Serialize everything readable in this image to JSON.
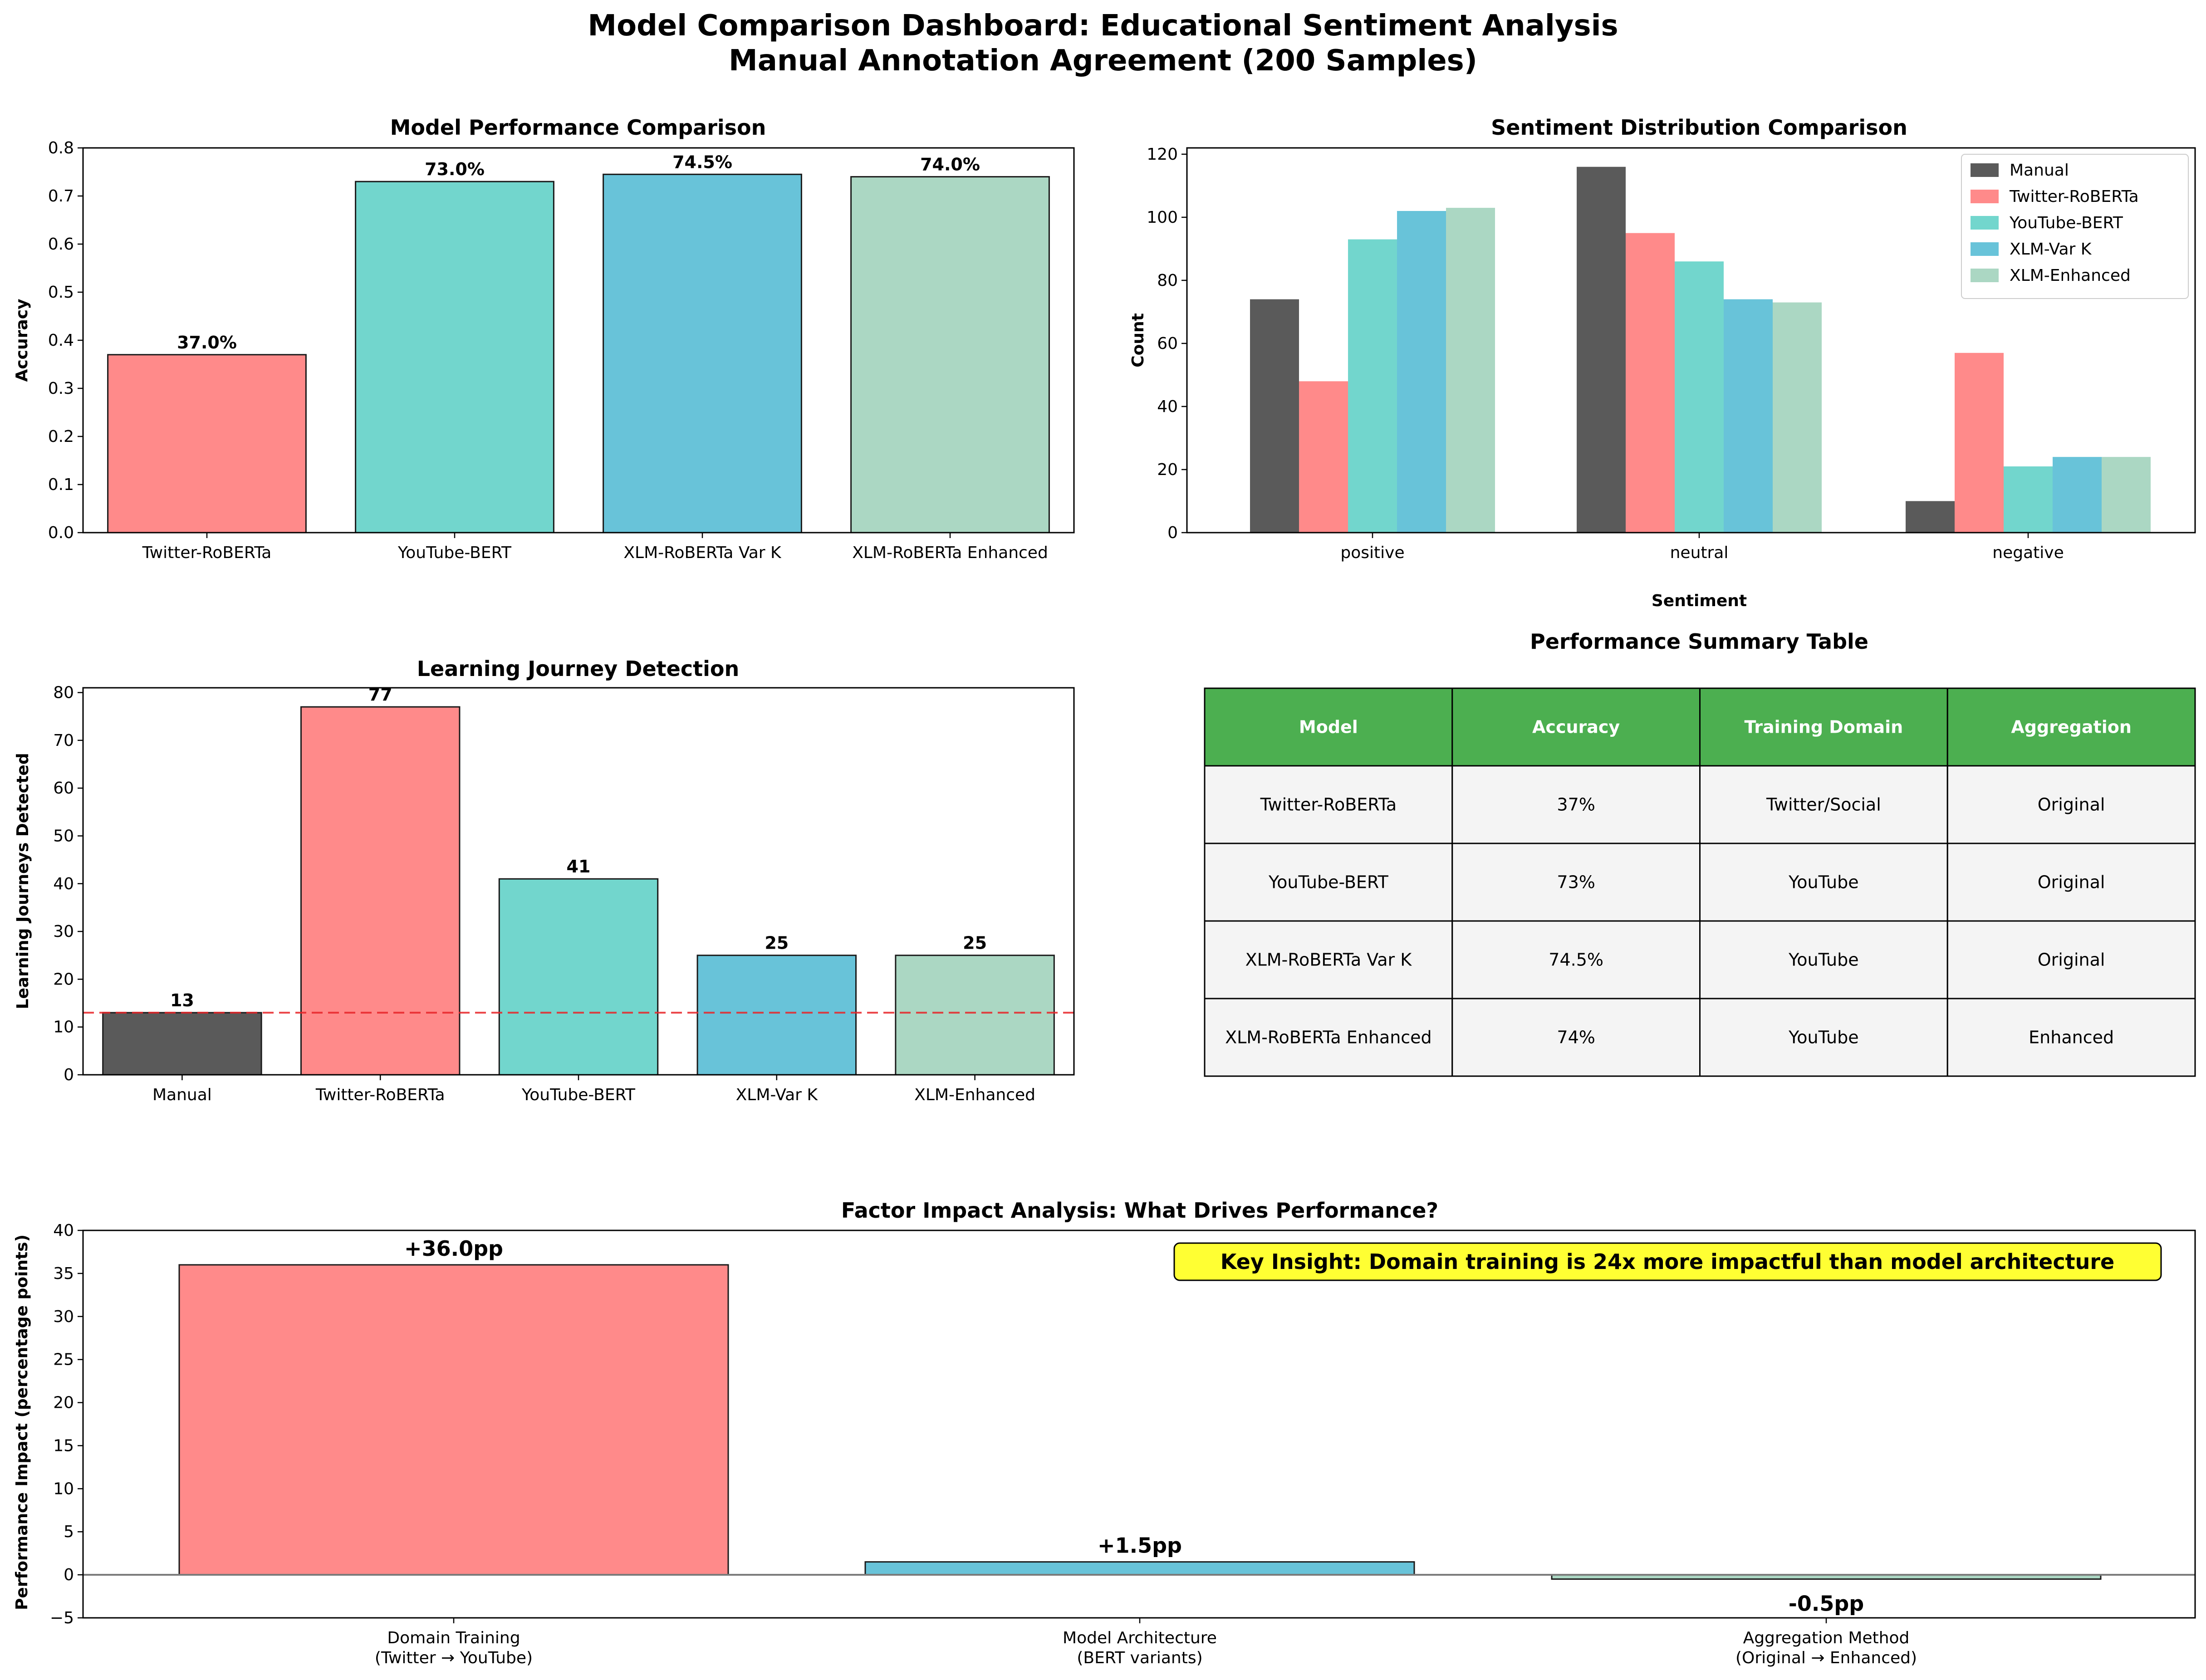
{
  "title_line1": "Model Comparison Dashboard: Educational Sentiment Analysis",
  "title_line2": "Manual Annotation Agreement (200 Samples)",
  "colors": {
    "manual": "#5a5a5a",
    "twitter": "#ff8a8a",
    "youtube": "#72d6cd",
    "xlmvar": "#68c3d9",
    "xlmenh": "#abd7c3",
    "header": "#4caf50",
    "cellbg": "#f4f4f4",
    "insight": "#ffff33",
    "refline": "#e8262a"
  },
  "chart_data": [
    {
      "id": "accuracy",
      "type": "bar",
      "title": "Model Performance Comparison",
      "ylabel": "Accuracy",
      "categories": [
        "Twitter-RoBERTa",
        "YouTube-BERT",
        "XLM-RoBERTa Var K",
        "XLM-RoBERTa Enhanced"
      ],
      "values": [
        0.37,
        0.73,
        0.745,
        0.74
      ],
      "labels": [
        "37.0%",
        "73.0%",
        "74.5%",
        "74.0%"
      ],
      "ylim": [
        0,
        0.8
      ],
      "yticks": [
        "0.0",
        "0.1",
        "0.2",
        "0.3",
        "0.4",
        "0.5",
        "0.6",
        "0.7",
        "0.8"
      ]
    },
    {
      "id": "sentiment",
      "type": "bar",
      "title": "Sentiment Distribution Comparison",
      "xlabel": "Sentiment",
      "ylabel": "Count",
      "categories": [
        "positive",
        "neutral",
        "negative"
      ],
      "series": [
        {
          "name": "Manual",
          "values": [
            74,
            116,
            10
          ]
        },
        {
          "name": "Twitter-RoBERTa",
          "values": [
            48,
            95,
            57
          ]
        },
        {
          "name": "YouTube-BERT",
          "values": [
            93,
            86,
            21
          ]
        },
        {
          "name": "XLM-Var K",
          "values": [
            102,
            74,
            24
          ]
        },
        {
          "name": "XLM-Enhanced",
          "values": [
            103,
            73,
            24
          ]
        }
      ],
      "ylim": [
        0,
        122
      ],
      "yticks": [
        "0",
        "20",
        "40",
        "60",
        "80",
        "100",
        "120"
      ],
      "legend": "top-right"
    },
    {
      "id": "journey",
      "type": "bar",
      "title": "Learning Journey Detection",
      "ylabel": "Learning Journeys Detected",
      "categories": [
        "Manual",
        "Twitter-RoBERTa",
        "YouTube-BERT",
        "XLM-Var K",
        "XLM-Enhanced"
      ],
      "values": [
        13,
        77,
        41,
        25,
        25
      ],
      "labels": [
        "13",
        "77",
        "41",
        "25",
        "25"
      ],
      "reference_line": 13,
      "ylim": [
        0,
        81
      ],
      "yticks": [
        "0",
        "10",
        "20",
        "30",
        "40",
        "50",
        "60",
        "70",
        "80"
      ]
    },
    {
      "id": "table",
      "type": "table",
      "title": "Performance Summary Table",
      "columns": [
        "Model",
        "Accuracy",
        "Training Domain",
        "Aggregation"
      ],
      "rows": [
        [
          "Twitter-RoBERTa",
          "37%",
          "Twitter/Social",
          "Original"
        ],
        [
          "YouTube-BERT",
          "73%",
          "YouTube",
          "Original"
        ],
        [
          "XLM-RoBERTa Var K",
          "74.5%",
          "YouTube",
          "Original"
        ],
        [
          "XLM-RoBERTa Enhanced",
          "74%",
          "YouTube",
          "Enhanced"
        ]
      ]
    },
    {
      "id": "factor",
      "type": "bar",
      "title": "Factor Impact Analysis: What Drives Performance?",
      "ylabel": "Performance Impact (percentage points)",
      "categories": [
        [
          "Domain Training",
          "(Twitter → YouTube)"
        ],
        [
          "Model Architecture",
          "(BERT variants)"
        ],
        [
          "Aggregation Method",
          "(Original → Enhanced)"
        ]
      ],
      "values": [
        36.0,
        1.5,
        -0.5
      ],
      "labels": [
        "+36.0pp",
        "+1.5pp",
        "-0.5pp"
      ],
      "ylim": [
        -5,
        40
      ],
      "yticks": [
        "−5",
        "0",
        "5",
        "10",
        "15",
        "20",
        "25",
        "30",
        "35",
        "40"
      ],
      "annotation": "Key Insight: Domain training is 24x more impactful than model architecture"
    }
  ]
}
